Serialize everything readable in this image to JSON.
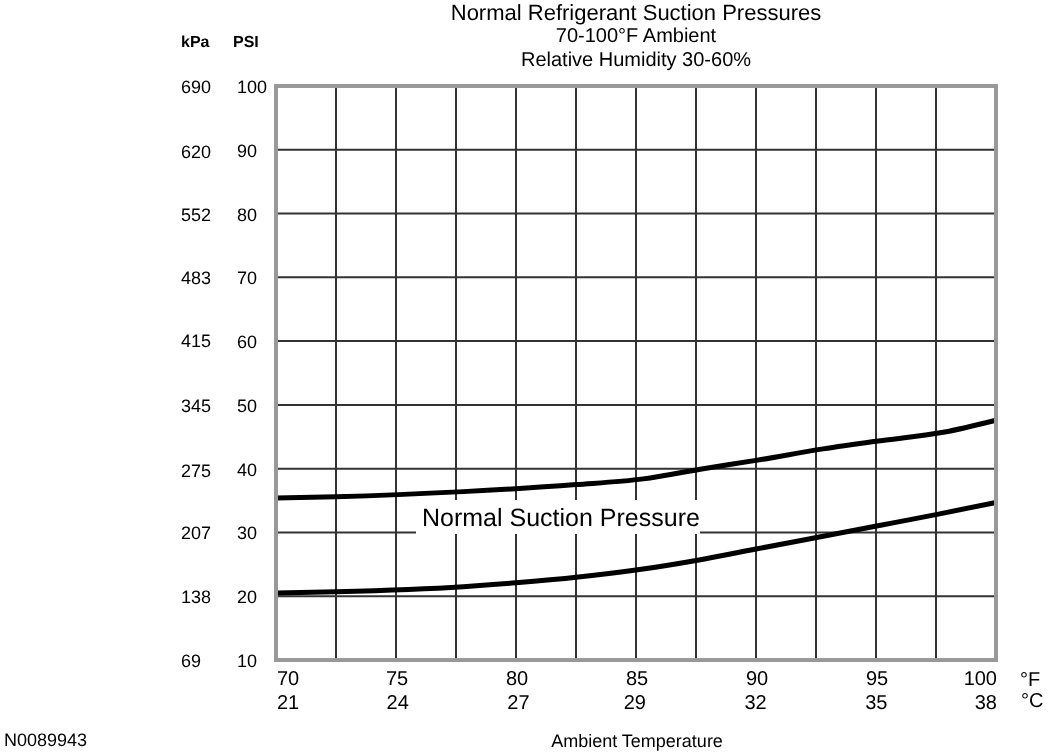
{
  "chart_data": {
    "type": "line",
    "title": "Normal Refrigerant Suction Pressures",
    "subtitle": "70-100°F Ambient\nRelative Humidity 30-60%",
    "xlabel": "Ambient Temperature",
    "ylabel": "PSI",
    "y2label": "kPa",
    "x2label": "°C",
    "series": [
      {
        "color": "#000000",
        "x": [
          70,
          72.5,
          77.8,
          82.5,
          85.3,
          87.8,
          90,
          92.8,
          95,
          97.8,
          100
        ],
        "values": [
          35.4,
          35.6,
          36.4,
          37.5,
          38.4,
          40,
          41.3,
          43.1,
          44.3,
          45.7,
          47.6
        ]
      },
      {
        "color": "#000000",
        "x": [
          70,
          72.5,
          77.8,
          80,
          82.6,
          85,
          87.8,
          90,
          92.8,
          95.3,
          97.5,
          100
        ],
        "values": [
          20.5,
          20.7,
          21.5,
          22.1,
          23,
          24.1,
          25.8,
          27.4,
          29.4,
          31.2,
          32.8,
          34.7
        ]
      }
    ],
    "xlim": [
      70,
      100
    ],
    "xticks": [
      70,
      {
        "value": 72.5,
        "label": null
      },
      75,
      {
        "value": 77.5,
        "label": null
      },
      80,
      {
        "value": 82.5,
        "label": null
      },
      85,
      {
        "value": 87.5,
        "label": null
      },
      90,
      {
        "value": 92.5,
        "label": null
      },
      95,
      {
        "value": 97.5,
        "label": null
      },
      100
    ],
    "x2lim": [
      21.1,
      37.8
    ],
    "x2ticks": [
      {
        "value": 21.1,
        "label": "21"
      },
      {
        "value": 23.9,
        "label": "24"
      },
      {
        "value": 26.7,
        "label": "27"
      },
      {
        "value": 29.4,
        "label": "29"
      },
      {
        "value": 32.2,
        "label": "32"
      },
      {
        "value": 35,
        "label": "35"
      },
      {
        "value": 37.8,
        "label": "38"
      }
    ],
    "ylim": [
      10,
      100
    ],
    "yticks": [
      10,
      20,
      30,
      40,
      50,
      60,
      70,
      80,
      90,
      100
    ],
    "y2lim": [
      69,
      690
    ],
    "y2ticks": [
      69,
      138,
      207,
      275,
      345,
      415,
      483,
      552,
      620,
      690
    ],
    "grid": true,
    "marker": "none",
    "line_style": "solid",
    "annotations": [
      "Normal Suction Pressure",
      "°F",
      "N0089943"
    ]
  }
}
